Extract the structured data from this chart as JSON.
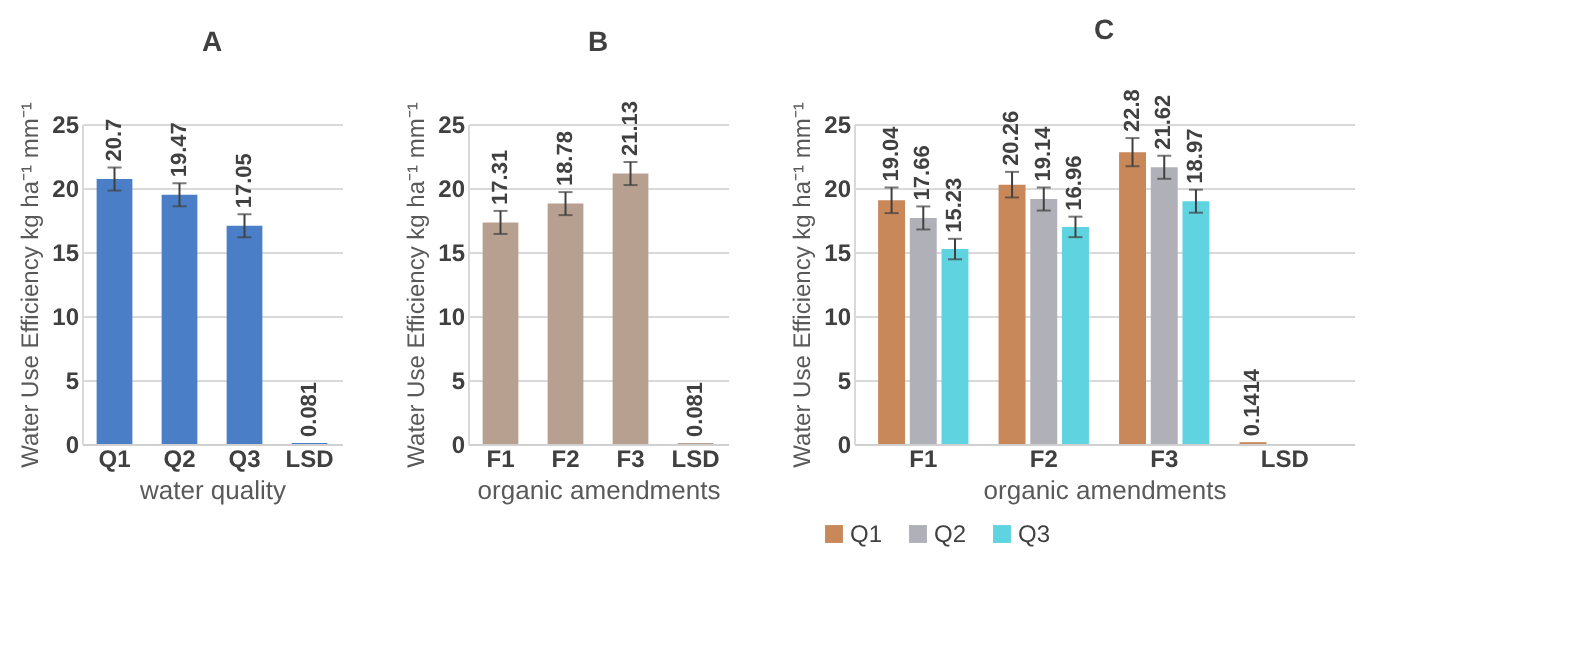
{
  "chart_data": [
    {
      "type": "bar",
      "title": "A",
      "categories": [
        "Q1",
        "Q2",
        "Q3",
        "LSD"
      ],
      "values": [
        20.7,
        19.47,
        17.05,
        0.081
      ],
      "errors": [
        0.9,
        0.9,
        0.9,
        null
      ],
      "color": "#4a7fc8",
      "xlabel": "water quality",
      "ylabel": "Water Use Efficiency kg ha⁻¹ mm⁻¹",
      "ylim": [
        0,
        25
      ],
      "yticks": [
        0,
        5,
        10,
        15,
        20,
        25
      ],
      "grid": "y",
      "data_labels": true
    },
    {
      "type": "bar",
      "title": "B",
      "categories": [
        "F1",
        "F2",
        "F3",
        "LSD"
      ],
      "values": [
        17.31,
        18.78,
        21.13,
        0.081
      ],
      "errors": [
        0.9,
        0.9,
        0.9,
        null
      ],
      "color": "#b8a090",
      "xlabel": "organic amendments",
      "ylabel": "Water Use Efficiency kg ha⁻¹ mm⁻¹",
      "ylim": [
        0,
        25
      ],
      "yticks": [
        0,
        5,
        10,
        15,
        20,
        25
      ],
      "grid": "y",
      "data_labels": true
    },
    {
      "type": "bar",
      "title": "C",
      "categories": [
        "F1",
        "F2",
        "F3",
        "LSD"
      ],
      "xlabel": "organic amendments",
      "ylabel": "Water Use Efficiency kg ha⁻¹ mm⁻¹",
      "ylim": [
        0,
        25
      ],
      "yticks": [
        0,
        5,
        10,
        15,
        20,
        25
      ],
      "grid": "y",
      "data_labels": true,
      "legend": "bottom",
      "series": [
        {
          "name": "Q1",
          "color": "#c8885a",
          "values": [
            19.04,
            20.26,
            22.8,
            0.1414
          ],
          "errors": [
            1,
            1,
            1.1,
            null
          ]
        },
        {
          "name": "Q2",
          "color": "#b0b0b8",
          "values": [
            17.66,
            19.14,
            21.62,
            null
          ],
          "errors": [
            0.9,
            0.9,
            0.9,
            null
          ]
        },
        {
          "name": "Q3",
          "color": "#5fd3e0",
          "values": [
            15.23,
            16.96,
            18.97,
            null
          ],
          "errors": [
            0.8,
            0.8,
            0.9,
            null
          ]
        }
      ]
    }
  ]
}
